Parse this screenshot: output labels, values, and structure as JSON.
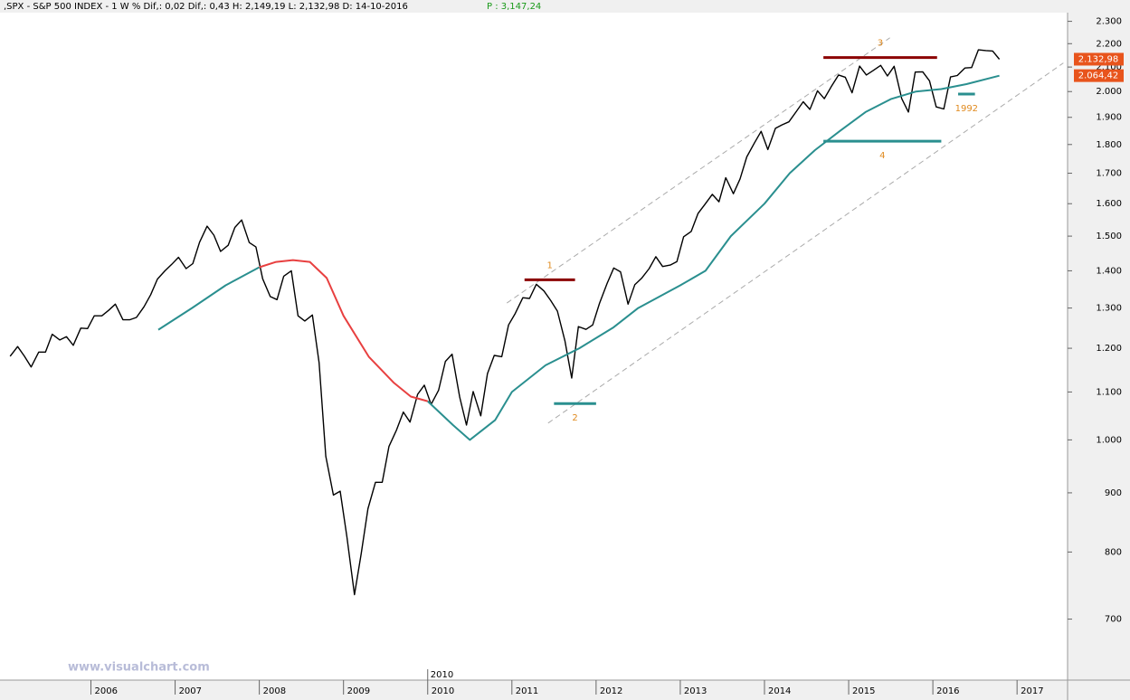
{
  "header": ",SPX - S&P 500 INDEX -  1 W % Dif,: 0,02 Dif,: 0,43 H: 2,149,19 L: 2,132,98 D: 14-10-2016",
  "header_p": "P : 3,147,24",
  "watermark": "www.visualchart.com",
  "chart_data": {
    "type": "line",
    "log_scale": true,
    "xlim": [
      2004.92,
      2017.6
    ],
    "xticks": [
      2006,
      2007,
      2008,
      2009,
      2010,
      2011,
      2012,
      2013,
      2014,
      2015,
      2016,
      2017
    ],
    "cursor_x": 2010,
    "ylim": [
      620,
      2340
    ],
    "yticks": [
      700,
      800,
      900,
      {
        "value": 1000,
        "label": "1.000"
      },
      {
        "value": 1100,
        "label": "1.100"
      },
      {
        "value": 1200,
        "label": "1.200"
      },
      {
        "value": 1300,
        "label": "1.300"
      },
      {
        "value": 1400,
        "label": "1.400"
      },
      {
        "value": 1500,
        "label": "1.500"
      },
      {
        "value": 1600,
        "label": "1.600"
      },
      {
        "value": 1700,
        "label": "1.700"
      },
      {
        "value": 1800,
        "label": "1.800"
      },
      {
        "value": 1900,
        "label": "1.900"
      },
      {
        "value": 2000,
        "label": "2.000"
      },
      {
        "value": 2100,
        "label": "2.100"
      },
      {
        "value": 2200,
        "label": "2.200"
      },
      {
        "value": 2300,
        "label": "2.300"
      }
    ],
    "series": [
      {
        "color": "#000000",
        "x": [
          2005.04,
          2005.13,
          2005.21,
          2005.29,
          2005.38,
          2005.46,
          2005.54,
          2005.63,
          2005.71,
          2005.79,
          2005.88,
          2005.96,
          2006.04,
          2006.13,
          2006.21,
          2006.29,
          2006.38,
          2006.46,
          2006.54,
          2006.63,
          2006.71,
          2006.79,
          2006.88,
          2006.96,
          2007.04,
          2007.13,
          2007.21,
          2007.29,
          2007.38,
          2007.46,
          2007.54,
          2007.63,
          2007.71,
          2007.79,
          2007.88,
          2007.96,
          2008.04,
          2008.13,
          2008.21,
          2008.29,
          2008.38,
          2008.46,
          2008.54,
          2008.63,
          2008.71,
          2008.79,
          2008.88,
          2008.96,
          2009.04,
          2009.13,
          2009.21,
          2009.29,
          2009.38,
          2009.46,
          2009.54,
          2009.63,
          2009.71,
          2009.79,
          2009.88,
          2009.96,
          2010.04,
          2010.13,
          2010.21,
          2010.29,
          2010.38,
          2010.46,
          2010.54,
          2010.63,
          2010.71,
          2010.79,
          2010.88,
          2010.96,
          2011.04,
          2011.13,
          2011.21,
          2011.29,
          2011.38,
          2011.46,
          2011.54,
          2011.63,
          2011.71,
          2011.79,
          2011.88,
          2011.96,
          2012.04,
          2012.13,
          2012.21,
          2012.29,
          2012.38,
          2012.46,
          2012.54,
          2012.63,
          2012.71,
          2012.79,
          2012.88,
          2012.96,
          2013.04,
          2013.13,
          2013.21,
          2013.29,
          2013.38,
          2013.46,
          2013.54,
          2013.63,
          2013.71,
          2013.79,
          2013.88,
          2013.96,
          2014.04,
          2014.13,
          2014.21,
          2014.29,
          2014.38,
          2014.46,
          2014.54,
          2014.63,
          2014.71,
          2014.79,
          2014.88,
          2014.96,
          2015.04,
          2015.13,
          2015.21,
          2015.29,
          2015.38,
          2015.46,
          2015.54,
          2015.63,
          2015.71,
          2015.79,
          2015.88,
          2015.96,
          2016.04,
          2016.13,
          2016.21,
          2016.29,
          2016.38,
          2016.46,
          2016.54,
          2016.63,
          2016.71,
          2016.79
        ],
        "values": [
          1181,
          1204,
          1181,
          1156,
          1191,
          1191,
          1234,
          1220,
          1228,
          1207,
          1249,
          1248,
          1280,
          1280,
          1294,
          1310,
          1270,
          1270,
          1276,
          1303,
          1335,
          1377,
          1400,
          1418,
          1438,
          1406,
          1420,
          1482,
          1530,
          1503,
          1455,
          1473,
          1526,
          1549,
          1481,
          1468,
          1378,
          1330,
          1322,
          1385,
          1400,
          1280,
          1267,
          1282,
          1166,
          968,
          896,
          903,
          825,
          735,
          797,
          872,
          919,
          919,
          987,
          1020,
          1057,
          1036,
          1095,
          1115,
          1073,
          1104,
          1169,
          1186,
          1089,
          1030,
          1101,
          1049,
          1141,
          1183,
          1180,
          1257,
          1286,
          1327,
          1325,
          1363,
          1345,
          1320,
          1292,
          1218,
          1131,
          1253,
          1246,
          1257,
          1312,
          1365,
          1408,
          1397,
          1310,
          1362,
          1379,
          1406,
          1440,
          1412,
          1416,
          1426,
          1498,
          1514,
          1569,
          1597,
          1630,
          1606,
          1685,
          1632,
          1681,
          1756,
          1805,
          1848,
          1782,
          1859,
          1872,
          1883,
          1923,
          1960,
          1930,
          2003,
          1972,
          2018,
          2067,
          2058,
          1995,
          2104,
          2067,
          2085,
          2107,
          2063,
          2103,
          1972,
          1920,
          2079,
          2080,
          2043,
          1940,
          1932,
          2059,
          2065,
          2096,
          2098,
          2173,
          2170,
          2168,
          2133
        ]
      },
      {
        "color": "#2a8f8f",
        "x": [
          2006.8,
          2007.2,
          2007.6,
          2008.0,
          2008.2,
          2008.4,
          2008.6,
          2008.8,
          2009.0,
          2009.3,
          2009.6,
          2009.8,
          2010.0,
          2010.3,
          2010.5,
          2010.8,
          2011.0,
          2011.4,
          2011.8,
          2012.2,
          2012.5,
          2013.0,
          2013.3,
          2013.6,
          2014.0,
          2014.3,
          2014.6,
          2014.9,
          2015.2,
          2015.5,
          2015.8,
          2016.1,
          2016.4,
          2016.79
        ],
        "values": [
          1245,
          1300,
          1360,
          1410,
          null,
          null,
          null,
          null,
          null,
          null,
          null,
          null,
          1080,
          1030,
          1000,
          1040,
          1100,
          1160,
          1200,
          1250,
          1300,
          1360,
          1400,
          1500,
          1600,
          1700,
          1780,
          1850,
          1920,
          1970,
          2000,
          2010,
          2030,
          2064
        ]
      },
      {
        "color": "#e84040",
        "x": [
          2008.0,
          2008.2,
          2008.4,
          2008.6,
          2008.8,
          2009.0,
          2009.3,
          2009.6,
          2009.8,
          2010.0
        ],
        "values": [
          1410,
          1425,
          1430,
          1425,
          1380,
          1280,
          1180,
          1120,
          1090,
          1080
        ]
      }
    ],
    "price_tags": {
      "values": [
        2132.98,
        2064.42
      ],
      "value_labels": [
        "2.132,98",
        "2.064,42"
      ],
      "color": "#e8541c"
    },
    "levels": [
      {
        "label": "1",
        "value": 1375,
        "x": [
          2011.15,
          2011.75
        ],
        "color": "#8b0000",
        "label_pos": "above"
      },
      {
        "label": "2",
        "value": 1075,
        "x": [
          2011.5,
          2012.0
        ],
        "color": "#2a8f8f",
        "label_pos": "below"
      },
      {
        "label": "3",
        "value": 2140,
        "x": [
          2014.7,
          2016.05
        ],
        "color": "#8b0000",
        "label_pos": "above"
      },
      {
        "label": "4",
        "value": 1812,
        "x": [
          2014.7,
          2016.1
        ],
        "color": "#2a8f8f",
        "label_pos": "below"
      },
      {
        "label": "1992",
        "value": 1990,
        "x": [
          2016.3,
          2016.5
        ],
        "color": "#2a8f8f",
        "label_pos": "below"
      }
    ],
    "trendlines": [
      {
        "x": [
          2010.94,
          2015.49
        ],
        "values": [
          1313,
          2226
        ]
      },
      {
        "x": [
          2011.43,
          2017.55
        ],
        "values": [
          1034,
          2117
        ]
      }
    ]
  }
}
